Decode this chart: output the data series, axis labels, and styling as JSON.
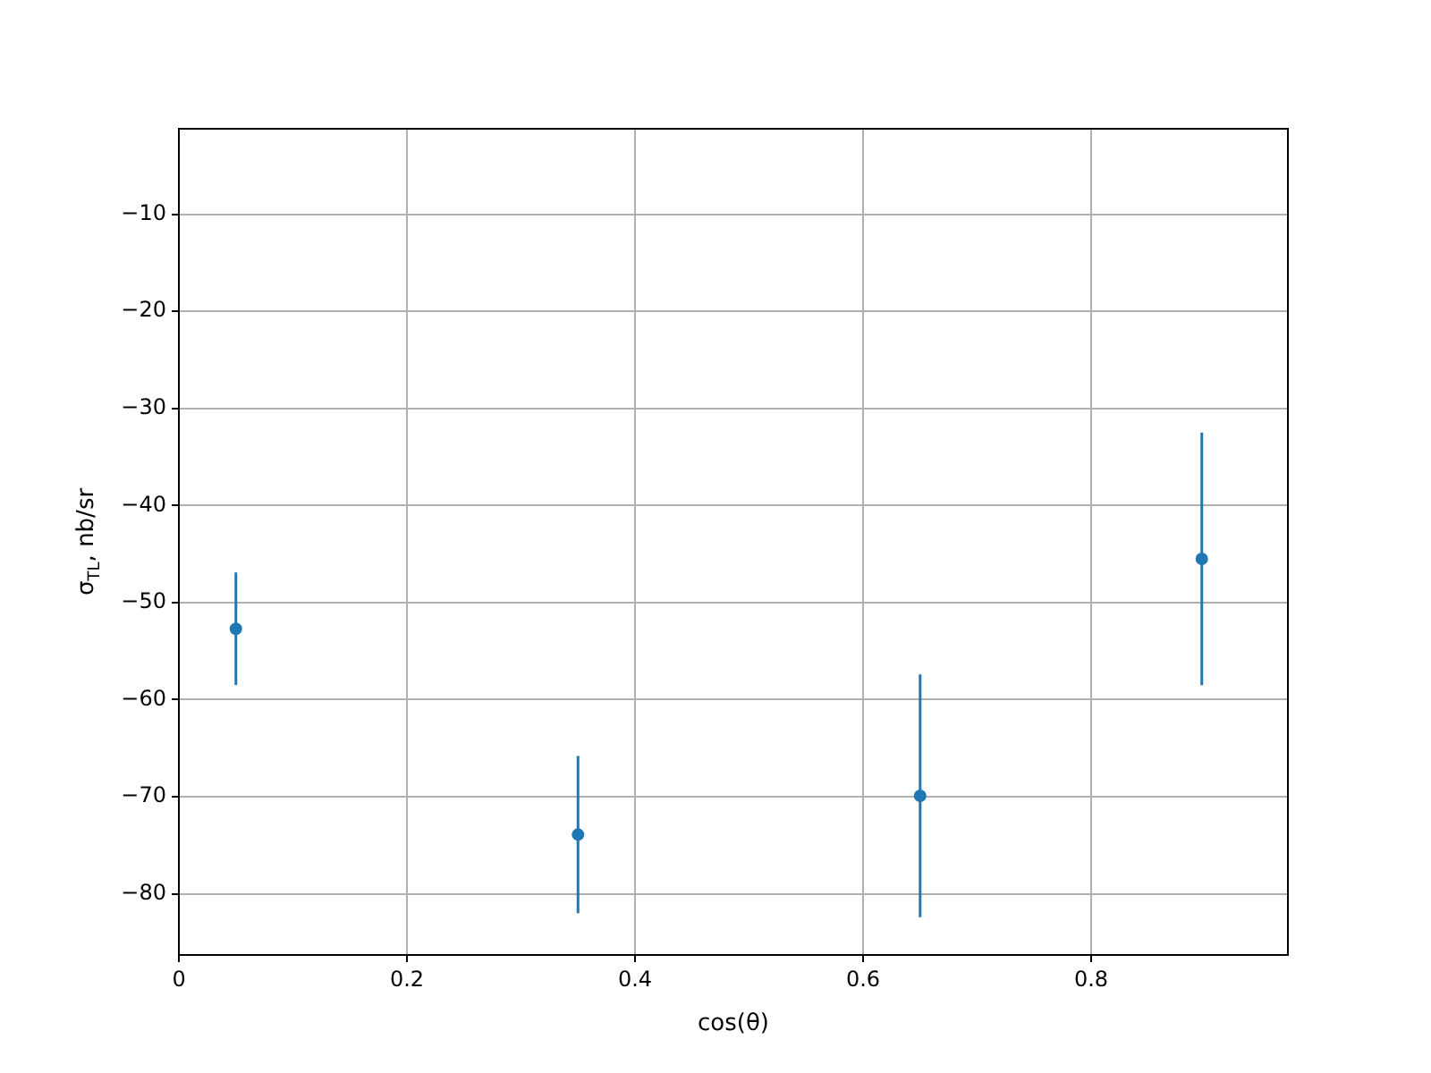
{
  "chart_data": {
    "type": "scatter",
    "xlabel": "cos(θ)",
    "ylabel": "σ$_{TL}$, nb/sr",
    "x": [
      0.05,
      0.35,
      0.65,
      0.897
    ],
    "series": [
      {
        "color": "#1f77b4",
        "values": [
          -52.7,
          -73.9,
          -69.9,
          -45.5
        ],
        "errors": [
          5.8,
          8.1,
          12.5,
          13
        ]
      }
    ],
    "xlim": [
      0,
      0.9725
    ],
    "xticks": [
      0,
      0.2,
      0.4,
      0.6,
      0.8
    ],
    "ylim": [
      -86.3,
      -1.2
    ],
    "yticks": [
      -80,
      -70,
      -60,
      -50,
      -40,
      -30,
      -20,
      -10
    ],
    "grid": true,
    "marker": "circle",
    "legend": false
  }
}
